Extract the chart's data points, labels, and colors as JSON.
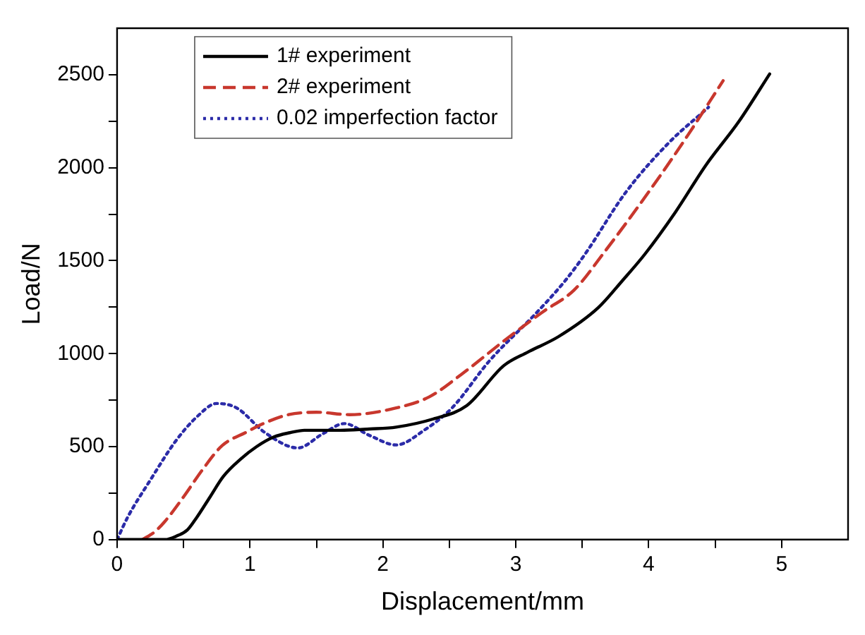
{
  "chart_data": {
    "type": "line",
    "xlabel": "Displacement/mm",
    "ylabel": "Load/N",
    "xlim": [
      0,
      5.5
    ],
    "ylim": [
      0,
      2750
    ],
    "xticks": [
      0,
      {
        "value": 0.5,
        "label": null
      },
      1,
      {
        "value": 1.5,
        "label": null
      },
      2,
      {
        "value": 2.5,
        "label": null
      },
      3,
      {
        "value": 3.5,
        "label": null
      },
      4,
      {
        "value": 4.5,
        "label": null
      },
      5
    ],
    "yticks": [
      0,
      {
        "value": 250,
        "label": null
      },
      500,
      {
        "value": 750,
        "label": null
      },
      1000,
      {
        "value": 1250,
        "label": null
      },
      1500,
      {
        "value": 1750,
        "label": null
      },
      2000,
      {
        "value": 2250,
        "label": null
      },
      2500
    ],
    "grid": false,
    "legend": "top left",
    "marker": "none",
    "series": [
      {
        "name": "1# experiment",
        "color": "#000000",
        "line_style": "solid",
        "x": [
          0,
          0.2,
          0.36,
          0.45,
          0.53,
          0.6,
          0.7,
          0.8,
          0.93,
          1.05,
          1.18,
          1.3,
          1.41,
          1.68,
          1.9,
          2.1,
          2.38,
          2.63,
          2.91,
          3.09,
          3.32,
          3.62,
          3.8,
          3.97,
          4.2,
          4.43,
          4.68,
          4.91
        ],
        "values": [
          0,
          0,
          0,
          20,
          53,
          120,
          230,
          340,
          433,
          500,
          552,
          575,
          588,
          588,
          595,
          605,
          649,
          720,
          936,
          1008,
          1091,
          1247,
          1391,
          1534,
          1760,
          2013,
          2250,
          2504
        ]
      },
      {
        "name": "2# experiment",
        "color": "#c8372d",
        "line_style": "dashed",
        "x": [
          0.19,
          0.28,
          0.36,
          0.5,
          0.65,
          0.79,
          0.97,
          1.12,
          1.29,
          1.5,
          1.75,
          2.1,
          2.35,
          2.59,
          2.91,
          3.2,
          3.44,
          3.66,
          4.05,
          4.29,
          4.56
        ],
        "values": [
          0,
          40,
          98,
          230,
          383,
          505,
          577,
          630,
          672,
          685,
          672,
          708,
          768,
          888,
          1068,
          1223,
          1343,
          1540,
          1920,
          2170,
          2468
        ]
      },
      {
        "name": "0.02 imperfection factor",
        "color": "#2b2ba8",
        "line_style": "dotted",
        "x": [
          0,
          0.08,
          0.25,
          0.44,
          0.6,
          0.75,
          0.9,
          1.11,
          1.36,
          1.55,
          1.71,
          1.9,
          2.1,
          2.31,
          2.52,
          2.8,
          3.16,
          3.37,
          3.52,
          3.83,
          4.15,
          4.45
        ],
        "values": [
          0,
          121,
          320,
          529,
          660,
          732,
          708,
          577,
          493,
          570,
          624,
          560,
          509,
          588,
          708,
          960,
          1223,
          1391,
          1534,
          1870,
          2133,
          2325
        ]
      }
    ]
  }
}
